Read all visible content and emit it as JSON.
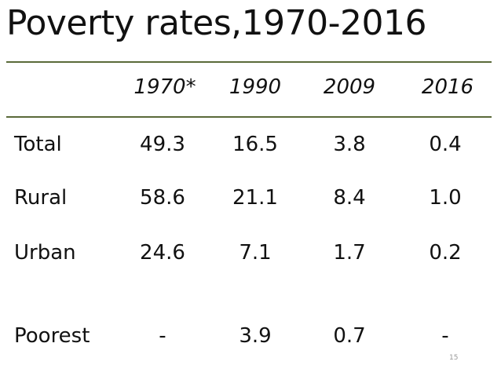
{
  "title": "Poverty rates,1970-2016",
  "columns": [
    "1970*",
    "1990",
    "2009",
    "2016"
  ],
  "rows": [
    {
      "label": "Total",
      "values": [
        "49.3",
        "16.5",
        "3.8",
        "0.4"
      ]
    },
    {
      "label": "Rural",
      "values": [
        "58.6",
        "21.1",
        "8.4",
        "1.0"
      ]
    },
    {
      "label": "Urban",
      "values": [
        "24.6",
        "7.1",
        "1.7",
        "0.2"
      ]
    },
    {
      "label": "Poorest",
      "values": [
        "-",
        "3.9",
        "0.7",
        "-"
      ]
    }
  ],
  "page_number": "15",
  "colors": {
    "rule": "#5a6a3a",
    "text": "#111111"
  }
}
